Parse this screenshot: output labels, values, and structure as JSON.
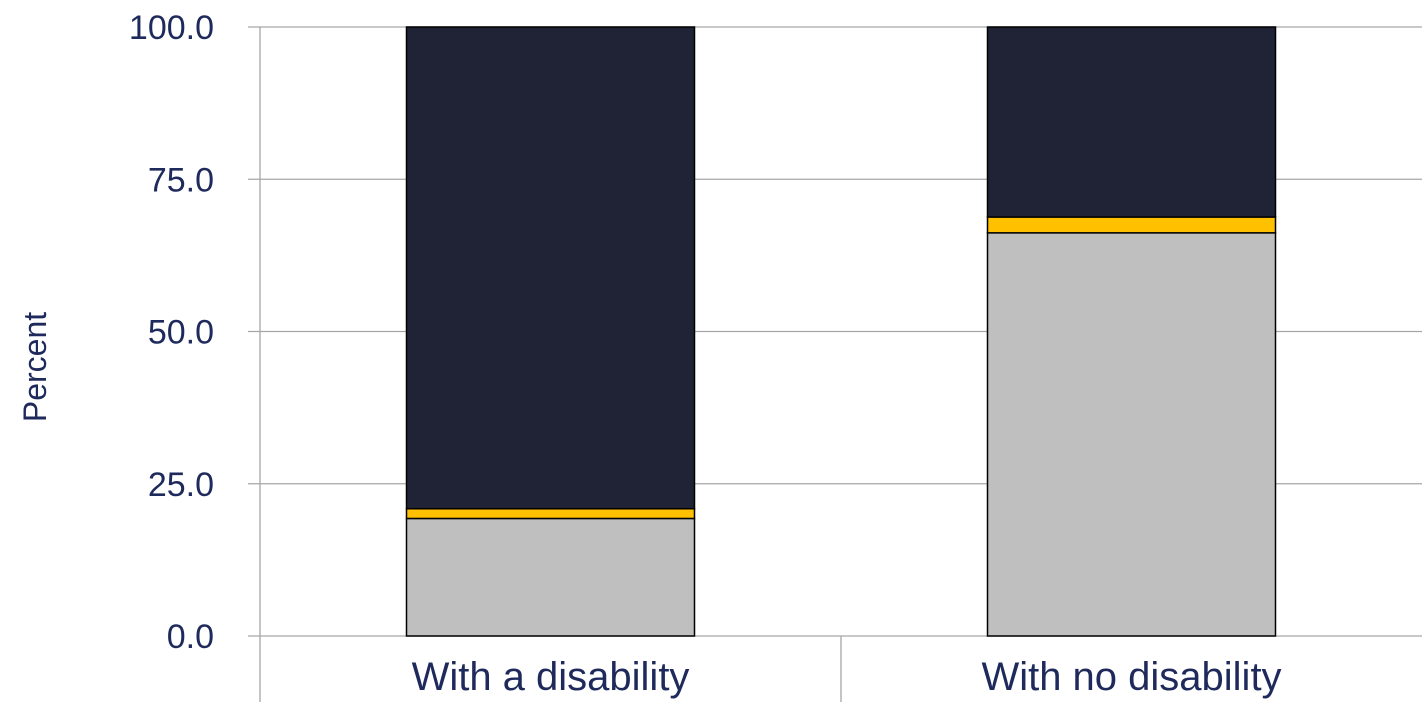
{
  "chart_data": {
    "type": "bar",
    "stacked": true,
    "title": "",
    "xlabel": "",
    "ylabel": "Percent",
    "ylim": [
      0,
      100
    ],
    "yticks": [
      "0.0",
      "25.0",
      "50.0",
      "75.0",
      "100.0"
    ],
    "grid": true,
    "categories": [
      "With a disability",
      "With no disability"
    ],
    "series": [
      {
        "values": [
          19.3,
          66.2
        ],
        "color": "#bfbfbf"
      },
      {
        "values": [
          1.6,
          2.6
        ],
        "color": "#ffc000"
      },
      {
        "values": [
          79.1,
          31.2
        ],
        "color": "#202235"
      }
    ]
  }
}
